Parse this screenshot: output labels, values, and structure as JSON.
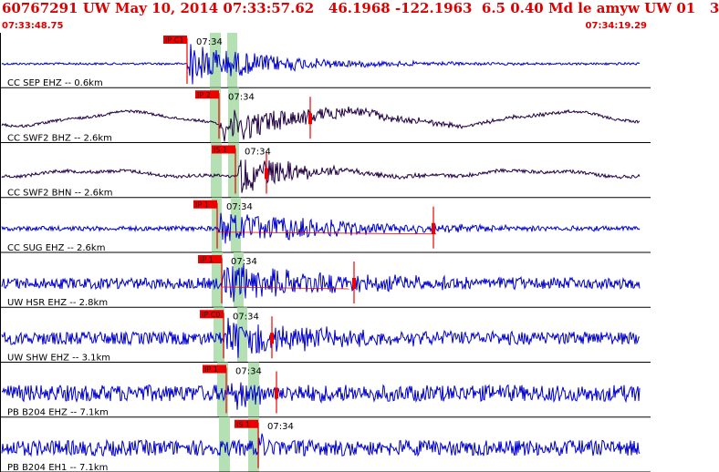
{
  "header": {
    "title": "60767291 UW May 10, 2014 07:33:57.62   46.1968 -122.1963  6.5 0.40 Md le amyw UW 01   3",
    "time_start": "07:33:48.75",
    "time_end": "07:34:19.29"
  },
  "colors": {
    "header_text": "#dd0000",
    "trace_blue": "#0000cc",
    "trace_dark": "#220044",
    "pick_red": "#ee0000",
    "window_green": "#b4e0b4",
    "divider": "#000000"
  },
  "traces": [
    {
      "label": "CC SEP EHZ -- 0.6km",
      "pick": "IP C1",
      "time": "07:34",
      "color": "#0000cc"
    },
    {
      "label": "CC SWF2 BHZ -- 2.6km",
      "pick": "IP 2",
      "time": "07:34",
      "color": "#220044"
    },
    {
      "label": "CC SWF2 BHN -- 2.6km",
      "pick": "IS 1",
      "time": "07:34",
      "color": "#220044"
    },
    {
      "label": "CC SUG EHZ -- 2.6km",
      "pick": "IP 1",
      "time": "07:34",
      "color": "#0000cc"
    },
    {
      "label": "UW HSR EHZ -- 2.8km",
      "pick": "IP 1",
      "time": "07:34",
      "color": "#0000cc"
    },
    {
      "label": "UW SHW EHZ -- 3.1km",
      "pick": "IP C0",
      "time": "07:34",
      "color": "#0000cc"
    },
    {
      "label": "PB B204 EHZ -- 7.1km",
      "pick": "IP 1",
      "time": "07:34",
      "color": "#0000cc"
    },
    {
      "label": "PB B204 EH1 -- 7.1km",
      "pick": "IS 1",
      "time": "07:34",
      "color": "#0000cc"
    }
  ]
}
